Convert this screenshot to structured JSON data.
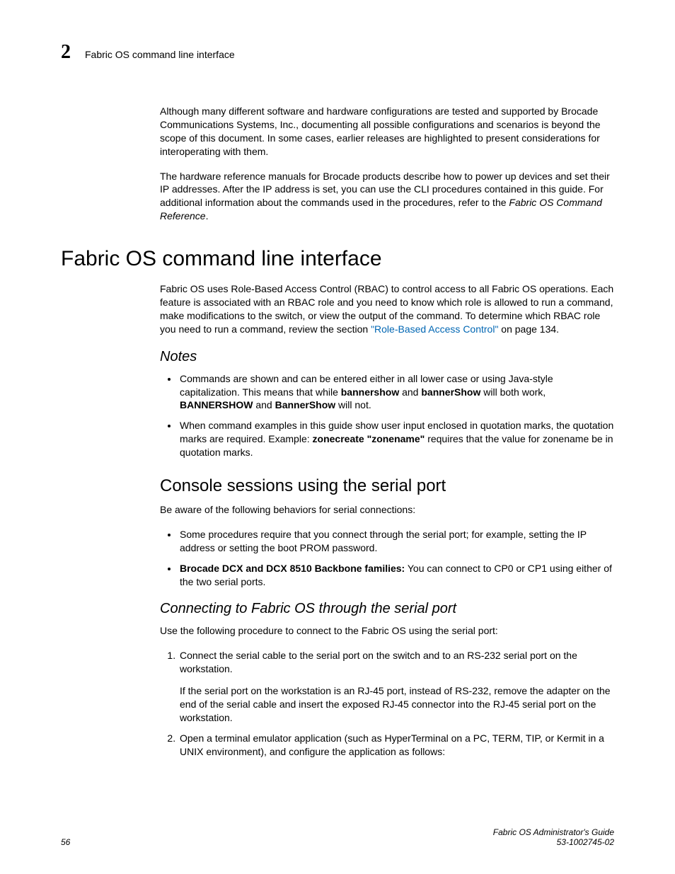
{
  "header": {
    "chapter_number": "2",
    "running_title": "Fabric OS command line interface"
  },
  "intro": {
    "p1": "Although many different software and hardware configurations are tested and supported by Brocade Communications Systems, Inc., documenting all possible configurations and scenarios is beyond the scope of this document. In some cases, earlier releases are highlighted to present considerations for interoperating with them.",
    "p2_a": "The hardware reference manuals for Brocade products describe how to power up devices and set their IP addresses. After the IP address is set, you can use the CLI procedures contained in this guide. For additional information about the commands used in the procedures, refer to the ",
    "p2_ref": "Fabric OS Command Reference",
    "p2_c": "."
  },
  "section": {
    "title": "Fabric OS command line interface",
    "p1_a": "Fabric OS uses Role-Based Access Control (RBAC) to control access to all Fabric OS operations. Each feature is associated with an RBAC role and you need to know which role is allowed to run a command, make modifications to the switch, or view the output of the command. To determine which RBAC role you need to run a command, review the section ",
    "p1_link": "\"Role-Based Access Control\"",
    "p1_b": " on page 134."
  },
  "notes": {
    "heading": "Notes",
    "b1_a": "Commands are shown and can be entered either in all lower case or using Java-style capitalization. This means that while ",
    "b1_cmd1": "bannershow",
    "b1_mid": " and ",
    "b1_cmd2": "bannerShow",
    "b1_c": " will both work, ",
    "b1_cmd3": "BANNERSHOW",
    "b1_and": " and ",
    "b1_cmd4": "BannerShow",
    "b1_end": " will not.",
    "b2_a": "When command examples in this guide show user input enclosed in quotation marks, the quotation marks are required. Example: ",
    "b2_cmd": "zonecreate \"zonename\"",
    "b2_b": " requires that the value for zonename be in quotation marks."
  },
  "console": {
    "heading": "Console sessions using the serial port",
    "intro": "Be aware of the following behaviors for serial connections:",
    "b1": "Some procedures require that you connect through the serial port; for example, setting the IP address or setting the boot PROM password.",
    "b2_bold": "Brocade DCX and DCX 8510 Backbone families:",
    "b2_rest": " You can connect to CP0 or CP1 using either of the two serial ports."
  },
  "connecting": {
    "heading": "Connecting to Fabric OS through the serial port",
    "intro": "Use the following procedure to connect to the Fabric OS using the serial port:",
    "s1_a": "Connect the serial cable to the serial port on the switch and to an RS-232 serial port on the workstation.",
    "s1_b": "If the serial port on the workstation is an RJ-45 port, instead of RS-232, remove the adapter on the end of the serial cable and insert the exposed RJ-45 connector into the RJ-45 serial port on the workstation.",
    "s2": "Open a terminal emulator application (such as HyperTerminal on a PC, TERM, TIP, or Kermit in a UNIX environment), and configure the application as follows:"
  },
  "footer": {
    "page": "56",
    "title": "Fabric OS Administrator's Guide",
    "docnum": "53-1002745-02"
  }
}
